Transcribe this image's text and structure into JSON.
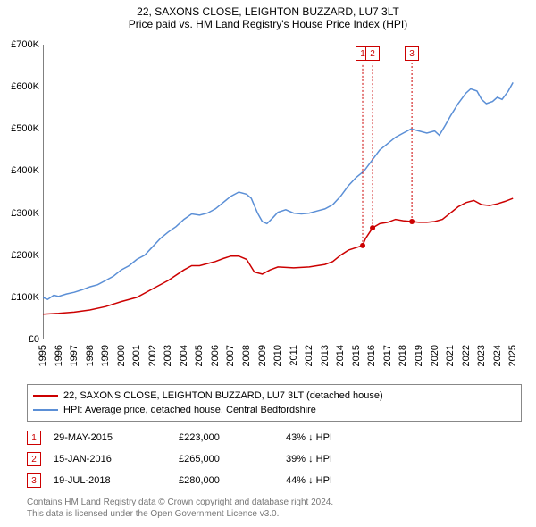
{
  "title_line1": "22, SAXONS CLOSE, LEIGHTON BUZZARD, LU7 3LT",
  "title_line2": "Price paid vs. HM Land Registry's House Price Index (HPI)",
  "chart": {
    "type": "line",
    "background_color": "#ffffff",
    "line_width": 1.5,
    "ylim": [
      0,
      700000
    ],
    "y_ticks": [
      0,
      100000,
      200000,
      300000,
      400000,
      500000,
      600000,
      700000
    ],
    "y_tick_labels": [
      "£0",
      "£100K",
      "£200K",
      "£300K",
      "£400K",
      "£500K",
      "£600K",
      "£700K"
    ],
    "xlim": [
      1995,
      2025.5
    ],
    "x_ticks": [
      1995,
      1996,
      1997,
      1998,
      1999,
      2000,
      2001,
      2002,
      2003,
      2004,
      2005,
      2006,
      2007,
      2008,
      2009,
      2010,
      2011,
      2012,
      2013,
      2014,
      2015,
      2016,
      2017,
      2018,
      2019,
      2020,
      2021,
      2022,
      2023,
      2024,
      2025
    ],
    "series_property": {
      "color": "#cc0000",
      "label": "22, SAXONS CLOSE, LEIGHTON BUZZARD, LU7 3LT (detached house)",
      "points": [
        [
          1995,
          60000
        ],
        [
          1996,
          62000
        ],
        [
          1997,
          65000
        ],
        [
          1998,
          70000
        ],
        [
          1999,
          78000
        ],
        [
          2000,
          90000
        ],
        [
          2001,
          100000
        ],
        [
          2002,
          120000
        ],
        [
          2003,
          140000
        ],
        [
          2004,
          165000
        ],
        [
          2004.5,
          175000
        ],
        [
          2005,
          175000
        ],
        [
          2005.5,
          180000
        ],
        [
          2006,
          185000
        ],
        [
          2006.5,
          192000
        ],
        [
          2007,
          198000
        ],
        [
          2007.5,
          198000
        ],
        [
          2008,
          190000
        ],
        [
          2008.5,
          160000
        ],
        [
          2009,
          155000
        ],
        [
          2009.5,
          165000
        ],
        [
          2010,
          172000
        ],
        [
          2011,
          170000
        ],
        [
          2012,
          172000
        ],
        [
          2013,
          178000
        ],
        [
          2013.5,
          185000
        ],
        [
          2014,
          200000
        ],
        [
          2014.5,
          212000
        ],
        [
          2015.4,
          223000
        ],
        [
          2015.6,
          240000
        ],
        [
          2016.04,
          265000
        ],
        [
          2016.5,
          275000
        ],
        [
          2017,
          278000
        ],
        [
          2017.5,
          285000
        ],
        [
          2018,
          282000
        ],
        [
          2018.55,
          280000
        ],
        [
          2019,
          278000
        ],
        [
          2019.5,
          278000
        ],
        [
          2020,
          280000
        ],
        [
          2020.5,
          285000
        ],
        [
          2021,
          300000
        ],
        [
          2021.5,
          315000
        ],
        [
          2022,
          325000
        ],
        [
          2022.5,
          330000
        ],
        [
          2023,
          320000
        ],
        [
          2023.5,
          318000
        ],
        [
          2024,
          322000
        ],
        [
          2024.5,
          328000
        ],
        [
          2025,
          335000
        ]
      ]
    },
    "series_hpi": {
      "color": "#5b8fd6",
      "label": "HPI: Average price, detached house, Central Bedfordshire",
      "points": [
        [
          1995,
          100000
        ],
        [
          1995.3,
          95000
        ],
        [
          1995.7,
          105000
        ],
        [
          1996,
          102000
        ],
        [
          1996.5,
          108000
        ],
        [
          1997,
          112000
        ],
        [
          1997.5,
          118000
        ],
        [
          1998,
          125000
        ],
        [
          1998.5,
          130000
        ],
        [
          1999,
          140000
        ],
        [
          1999.5,
          150000
        ],
        [
          2000,
          165000
        ],
        [
          2000.5,
          175000
        ],
        [
          2001,
          190000
        ],
        [
          2001.5,
          200000
        ],
        [
          2002,
          220000
        ],
        [
          2002.5,
          240000
        ],
        [
          2003,
          255000
        ],
        [
          2003.5,
          268000
        ],
        [
          2004,
          285000
        ],
        [
          2004.5,
          298000
        ],
        [
          2005,
          295000
        ],
        [
          2005.5,
          300000
        ],
        [
          2006,
          310000
        ],
        [
          2006.5,
          325000
        ],
        [
          2007,
          340000
        ],
        [
          2007.5,
          350000
        ],
        [
          2008,
          345000
        ],
        [
          2008.3,
          335000
        ],
        [
          2008.7,
          300000
        ],
        [
          2009,
          280000
        ],
        [
          2009.3,
          275000
        ],
        [
          2009.7,
          290000
        ],
        [
          2010,
          302000
        ],
        [
          2010.5,
          308000
        ],
        [
          2011,
          300000
        ],
        [
          2011.5,
          298000
        ],
        [
          2012,
          300000
        ],
        [
          2012.5,
          305000
        ],
        [
          2013,
          310000
        ],
        [
          2013.5,
          320000
        ],
        [
          2014,
          340000
        ],
        [
          2014.5,
          365000
        ],
        [
          2015,
          385000
        ],
        [
          2015.5,
          400000
        ],
        [
          2016,
          425000
        ],
        [
          2016.5,
          450000
        ],
        [
          2017,
          465000
        ],
        [
          2017.5,
          480000
        ],
        [
          2018,
          490000
        ],
        [
          2018.5,
          500000
        ],
        [
          2019,
          495000
        ],
        [
          2019.5,
          490000
        ],
        [
          2020,
          495000
        ],
        [
          2020.3,
          485000
        ],
        [
          2020.7,
          510000
        ],
        [
          2021,
          530000
        ],
        [
          2021.5,
          560000
        ],
        [
          2022,
          585000
        ],
        [
          2022.3,
          595000
        ],
        [
          2022.7,
          590000
        ],
        [
          2023,
          570000
        ],
        [
          2023.3,
          560000
        ],
        [
          2023.7,
          565000
        ],
        [
          2024,
          575000
        ],
        [
          2024.3,
          570000
        ],
        [
          2024.7,
          590000
        ],
        [
          2025,
          610000
        ]
      ]
    },
    "sale_markers": [
      {
        "n": "1",
        "x": 2015.41,
        "y": 223000,
        "line_top": 60000
      },
      {
        "n": "2",
        "x": 2016.04,
        "y": 265000,
        "line_top": 60000
      },
      {
        "n": "3",
        "x": 2018.55,
        "y": 280000,
        "line_top": 60000
      }
    ],
    "marker_line_color": "#cc0000",
    "marker_box_border": "#cc0000",
    "marker_dot_color": "#cc0000",
    "axis_font_size": 11,
    "title_font_size": 12
  },
  "legend": {
    "property_label": "22, SAXONS CLOSE, LEIGHTON BUZZARD, LU7 3LT (detached house)",
    "hpi_label": "HPI: Average price, detached house, Central Bedfordshire"
  },
  "sales": [
    {
      "n": "1",
      "date": "29-MAY-2015",
      "price": "£223,000",
      "diff": "43% ↓ HPI"
    },
    {
      "n": "2",
      "date": "15-JAN-2016",
      "price": "£265,000",
      "diff": "39% ↓ HPI"
    },
    {
      "n": "3",
      "date": "19-JUL-2018",
      "price": "£280,000",
      "diff": "44% ↓ HPI"
    }
  ],
  "footer_line1": "Contains HM Land Registry data © Crown copyright and database right 2024.",
  "footer_line2": "This data is licensed under the Open Government Licence v3.0."
}
